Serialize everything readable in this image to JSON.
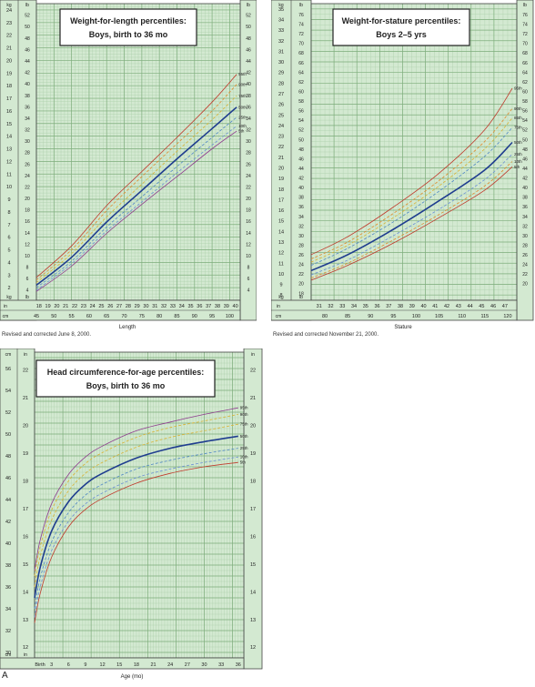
{
  "figure_label": "A",
  "notes": {
    "wfl": "Revised and corrected June 8, 2000.",
    "wfs": "Revised and corrected November 21, 2000."
  },
  "colors": {
    "grid_bg": "#d3e9d1",
    "grid_major": "#7fae7d",
    "grid_minor": "#a9cda7",
    "border": "#444444",
    "p95": "#c0392b",
    "p90": "#e08a2b",
    "p75": "#d9b233",
    "p50": "#1f3d8f",
    "p25": "#4f86c6",
    "p10": "#6b8fd6",
    "p5": "#8e3b8e"
  },
  "chart_data": [
    {
      "id": "wfl",
      "type": "line",
      "title_line1": "Weight-for-length percentiles:",
      "title_line2": "Boys, birth to 36 mo",
      "xlabel": "Length",
      "unit_left_top": "kg",
      "unit_left_bottom": "kg",
      "unit_in": "in",
      "unit_lb": "lb",
      "unit_cm": "cm",
      "xlim": [
        45,
        103
      ],
      "ylim": [
        1,
        24.5
      ],
      "x_ticks_cm": [
        45,
        50,
        55,
        60,
        65,
        70,
        75,
        80,
        85,
        90,
        95,
        100
      ],
      "x_ticks_in": [
        18,
        19,
        20,
        21,
        22,
        23,
        24,
        25,
        26,
        27,
        28,
        29,
        30,
        31,
        32,
        33,
        34,
        35,
        36,
        37,
        38,
        39,
        40
      ],
      "y_ticks_kg": [
        2,
        3,
        4,
        5,
        6,
        7,
        8,
        9,
        10,
        11,
        12,
        13,
        14,
        15,
        16,
        17,
        18,
        19,
        20,
        21,
        22,
        23,
        24
      ],
      "y_ticks_lb_inner": [
        4,
        6,
        8,
        10,
        12,
        14,
        16,
        18,
        20,
        22,
        24,
        26,
        28,
        30,
        32,
        34,
        36,
        38,
        40,
        42,
        44,
        46,
        48,
        50,
        52
      ],
      "y_ticks_lb_right": [
        4,
        6,
        8,
        10,
        12,
        14,
        16,
        18,
        20,
        22,
        24,
        26,
        28,
        30,
        32,
        34,
        36,
        38,
        40,
        42,
        44,
        46,
        48,
        50,
        52
      ],
      "series": [
        {
          "name": "95th",
          "color": "p95",
          "dash": false,
          "x": [
            45,
            55,
            65,
            75,
            85,
            95,
            102
          ],
          "values": [
            2.8,
            5.3,
            8.5,
            11.2,
            13.9,
            16.7,
            18.9
          ]
        },
        {
          "name": "90th",
          "color": "p90",
          "dash": true,
          "x": [
            45,
            55,
            65,
            75,
            85,
            95,
            102
          ],
          "values": [
            2.6,
            5.0,
            8.1,
            10.8,
            13.4,
            16.0,
            18.1
          ]
        },
        {
          "name": "75th",
          "color": "p75",
          "dash": true,
          "x": [
            45,
            55,
            65,
            75,
            85,
            95,
            102
          ],
          "values": [
            2.4,
            4.7,
            7.6,
            10.2,
            12.8,
            15.3,
            17.2
          ]
        },
        {
          "name": "50th",
          "color": "p50",
          "dash": false,
          "bold": true,
          "x": [
            45,
            55,
            65,
            75,
            85,
            95,
            102
          ],
          "values": [
            2.2,
            4.4,
            7.2,
            9.7,
            12.2,
            14.6,
            16.3
          ]
        },
        {
          "name": "25th",
          "color": "p25",
          "dash": true,
          "x": [
            45,
            55,
            65,
            75,
            85,
            95,
            102
          ],
          "values": [
            2.0,
            4.1,
            6.8,
            9.2,
            11.6,
            13.9,
            15.5
          ]
        },
        {
          "name": "10th",
          "color": "p10",
          "dash": true,
          "x": [
            45,
            55,
            65,
            75,
            85,
            95,
            102
          ],
          "values": [
            1.8,
            3.9,
            6.5,
            8.8,
            11.1,
            13.3,
            14.8
          ]
        },
        {
          "name": "5th",
          "color": "p5",
          "dash": false,
          "x": [
            45,
            55,
            65,
            75,
            85,
            95,
            102
          ],
          "values": [
            1.7,
            3.7,
            6.3,
            8.6,
            10.8,
            13.0,
            14.4
          ]
        }
      ]
    },
    {
      "id": "wfs",
      "type": "line",
      "title_line1": "Weight-for-stature percentiles:",
      "title_line2": "Boys 2–5 yrs",
      "xlabel": "Stature",
      "unit_left_top": "kg",
      "unit_left_bottom": "kg",
      "unit_in": "in",
      "unit_lb": "lb",
      "unit_cm": "cm",
      "xlim": [
        77,
        122
      ],
      "ylim": [
        7.5,
        35.5
      ],
      "x_ticks_cm": [
        80,
        85,
        90,
        95,
        100,
        105,
        110,
        115,
        120
      ],
      "x_ticks_in": [
        31,
        32,
        33,
        34,
        35,
        36,
        37,
        38,
        39,
        40,
        41,
        42,
        43,
        44,
        45,
        46,
        47
      ],
      "y_ticks_kg": [
        8,
        9,
        10,
        11,
        12,
        13,
        14,
        15,
        16,
        17,
        18,
        19,
        20,
        21,
        22,
        23,
        24,
        25,
        26,
        27,
        28,
        29,
        30,
        31,
        32,
        33,
        34,
        35
      ],
      "y_ticks_lb_inner": [
        18,
        20,
        22,
        24,
        26,
        28,
        30,
        32,
        34,
        36,
        38,
        40,
        42,
        44,
        46,
        48,
        50,
        52,
        54,
        56,
        58,
        60,
        62,
        64,
        66,
        68,
        70,
        72,
        74,
        76
      ],
      "y_ticks_lb_right": [
        20,
        22,
        24,
        26,
        28,
        30,
        32,
        34,
        36,
        38,
        40,
        42,
        44,
        46,
        48,
        50,
        52,
        54,
        56,
        58,
        60,
        62,
        64,
        66,
        68,
        70,
        72,
        74,
        76
      ],
      "series": [
        {
          "name": "95th",
          "color": "p95",
          "dash": false,
          "x": [
            77,
            85,
            95,
            105,
            115,
            121
          ],
          "values": [
            11.8,
            13.5,
            16.3,
            19.5,
            23.6,
            27.5
          ]
        },
        {
          "name": "90th",
          "color": "p90",
          "dash": true,
          "x": [
            77,
            85,
            95,
            105,
            115,
            121
          ],
          "values": [
            11.4,
            13.0,
            15.7,
            18.8,
            22.5,
            25.6
          ]
        },
        {
          "name": "85th",
          "color": "p75",
          "dash": true,
          "x": [
            77,
            85,
            95,
            105,
            115,
            121
          ],
          "values": [
            11.1,
            12.7,
            15.3,
            18.3,
            21.8,
            24.7
          ]
        },
        {
          "name": "75th",
          "color": "p25",
          "dash": true,
          "x": [
            77,
            85,
            95,
            105,
            115,
            121
          ],
          "values": [
            10.8,
            12.4,
            14.9,
            17.8,
            21.1,
            23.8
          ]
        },
        {
          "name": "50th",
          "color": "p50",
          "dash": false,
          "bold": true,
          "x": [
            77,
            85,
            95,
            105,
            115,
            121
          ],
          "values": [
            10.3,
            11.8,
            14.2,
            16.9,
            19.8,
            22.4
          ]
        },
        {
          "name": "25th",
          "color": "p10",
          "dash": true,
          "x": [
            77,
            85,
            95,
            105,
            115,
            121
          ],
          "values": [
            9.9,
            11.3,
            13.6,
            16.1,
            18.9,
            21.3
          ]
        },
        {
          "name": "10th",
          "color": "p90",
          "dash": true,
          "x": [
            77,
            85,
            95,
            105,
            115,
            121
          ],
          "values": [
            9.6,
            11.0,
            13.2,
            15.6,
            18.3,
            20.6
          ]
        },
        {
          "name": "5th",
          "color": "p95",
          "dash": false,
          "x": [
            77,
            85,
            95,
            105,
            115,
            121
          ],
          "values": [
            9.4,
            10.8,
            12.9,
            15.3,
            17.9,
            20.1
          ]
        }
      ]
    },
    {
      "id": "hc",
      "type": "line",
      "title_line1": "Head circumference-for-age percentiles:",
      "title_line2": "Boys, birth to 36 mo",
      "xlabel": "Age (mo)",
      "unit_left_top": "cm",
      "unit_left_bottom": "cm",
      "unit_in": "in",
      "xlim": [
        0,
        37
      ],
      "ylim": [
        29.5,
        57.5
      ],
      "x_ticks": [
        {
          "v": 0,
          "label": "Birth"
        },
        {
          "v": 3,
          "label": "3"
        },
        {
          "v": 6,
          "label": "6"
        },
        {
          "v": 9,
          "label": "9"
        },
        {
          "v": 12,
          "label": "12"
        },
        {
          "v": 15,
          "label": "15"
        },
        {
          "v": 18,
          "label": "18"
        },
        {
          "v": 21,
          "label": "21"
        },
        {
          "v": 24,
          "label": "24"
        },
        {
          "v": 27,
          "label": "27"
        },
        {
          "v": 30,
          "label": "30"
        },
        {
          "v": 33,
          "label": "33"
        },
        {
          "v": 36,
          "label": "36"
        }
      ],
      "y_ticks_cm": [
        30,
        32,
        34,
        36,
        38,
        40,
        42,
        44,
        46,
        48,
        50,
        52,
        54,
        56
      ],
      "y_ticks_in_left": [
        12,
        13,
        14,
        15,
        16,
        17,
        18,
        19,
        20,
        21,
        22
      ],
      "y_ticks_in_right": [
        12,
        13,
        14,
        15,
        16,
        17,
        18,
        19,
        20,
        21,
        22
      ],
      "series": [
        {
          "name": "95th",
          "color": "p5",
          "dash": false,
          "x": [
            0,
            1,
            3,
            6,
            9,
            12,
            18,
            24,
            30,
            36
          ],
          "values": [
            37.5,
            40.3,
            43.6,
            46.3,
            47.9,
            48.9,
            50.3,
            51.1,
            51.8,
            52.4
          ]
        },
        {
          "name": "90th",
          "color": "p75",
          "dash": true,
          "x": [
            0,
            1,
            3,
            6,
            9,
            12,
            18,
            24,
            30,
            36
          ],
          "values": [
            37.0,
            39.7,
            43.0,
            45.7,
            47.3,
            48.3,
            49.7,
            50.6,
            51.2,
            51.8
          ]
        },
        {
          "name": "75th",
          "color": "p75",
          "dash": true,
          "x": [
            0,
            1,
            3,
            6,
            9,
            12,
            18,
            24,
            30,
            36
          ],
          "values": [
            36.0,
            38.8,
            42.1,
            44.8,
            46.4,
            47.4,
            48.8,
            49.7,
            50.3,
            50.9
          ]
        },
        {
          "name": "50th",
          "color": "p50",
          "dash": false,
          "bold": true,
          "x": [
            0,
            1,
            3,
            6,
            9,
            12,
            18,
            24,
            30,
            36
          ],
          "values": [
            35.0,
            37.8,
            41.1,
            43.8,
            45.4,
            46.4,
            47.8,
            48.7,
            49.3,
            49.8
          ]
        },
        {
          "name": "25th",
          "color": "p25",
          "dash": true,
          "x": [
            0,
            1,
            3,
            6,
            9,
            12,
            18,
            24,
            30,
            36
          ],
          "values": [
            34.0,
            36.8,
            40.1,
            42.8,
            44.4,
            45.4,
            46.8,
            47.6,
            48.2,
            48.7
          ]
        },
        {
          "name": "10th",
          "color": "p10",
          "dash": true,
          "x": [
            0,
            1,
            3,
            6,
            9,
            12,
            18,
            24,
            30,
            36
          ],
          "values": [
            33.2,
            36.0,
            39.3,
            42.0,
            43.6,
            44.6,
            46.0,
            46.8,
            47.4,
            47.9
          ]
        },
        {
          "name": "5th",
          "color": "p95",
          "dash": false,
          "x": [
            0,
            1,
            3,
            6,
            9,
            12,
            18,
            24,
            30,
            36
          ],
          "values": [
            32.7,
            35.4,
            38.7,
            41.5,
            43.1,
            44.1,
            45.5,
            46.4,
            47.0,
            47.4
          ]
        }
      ]
    }
  ]
}
